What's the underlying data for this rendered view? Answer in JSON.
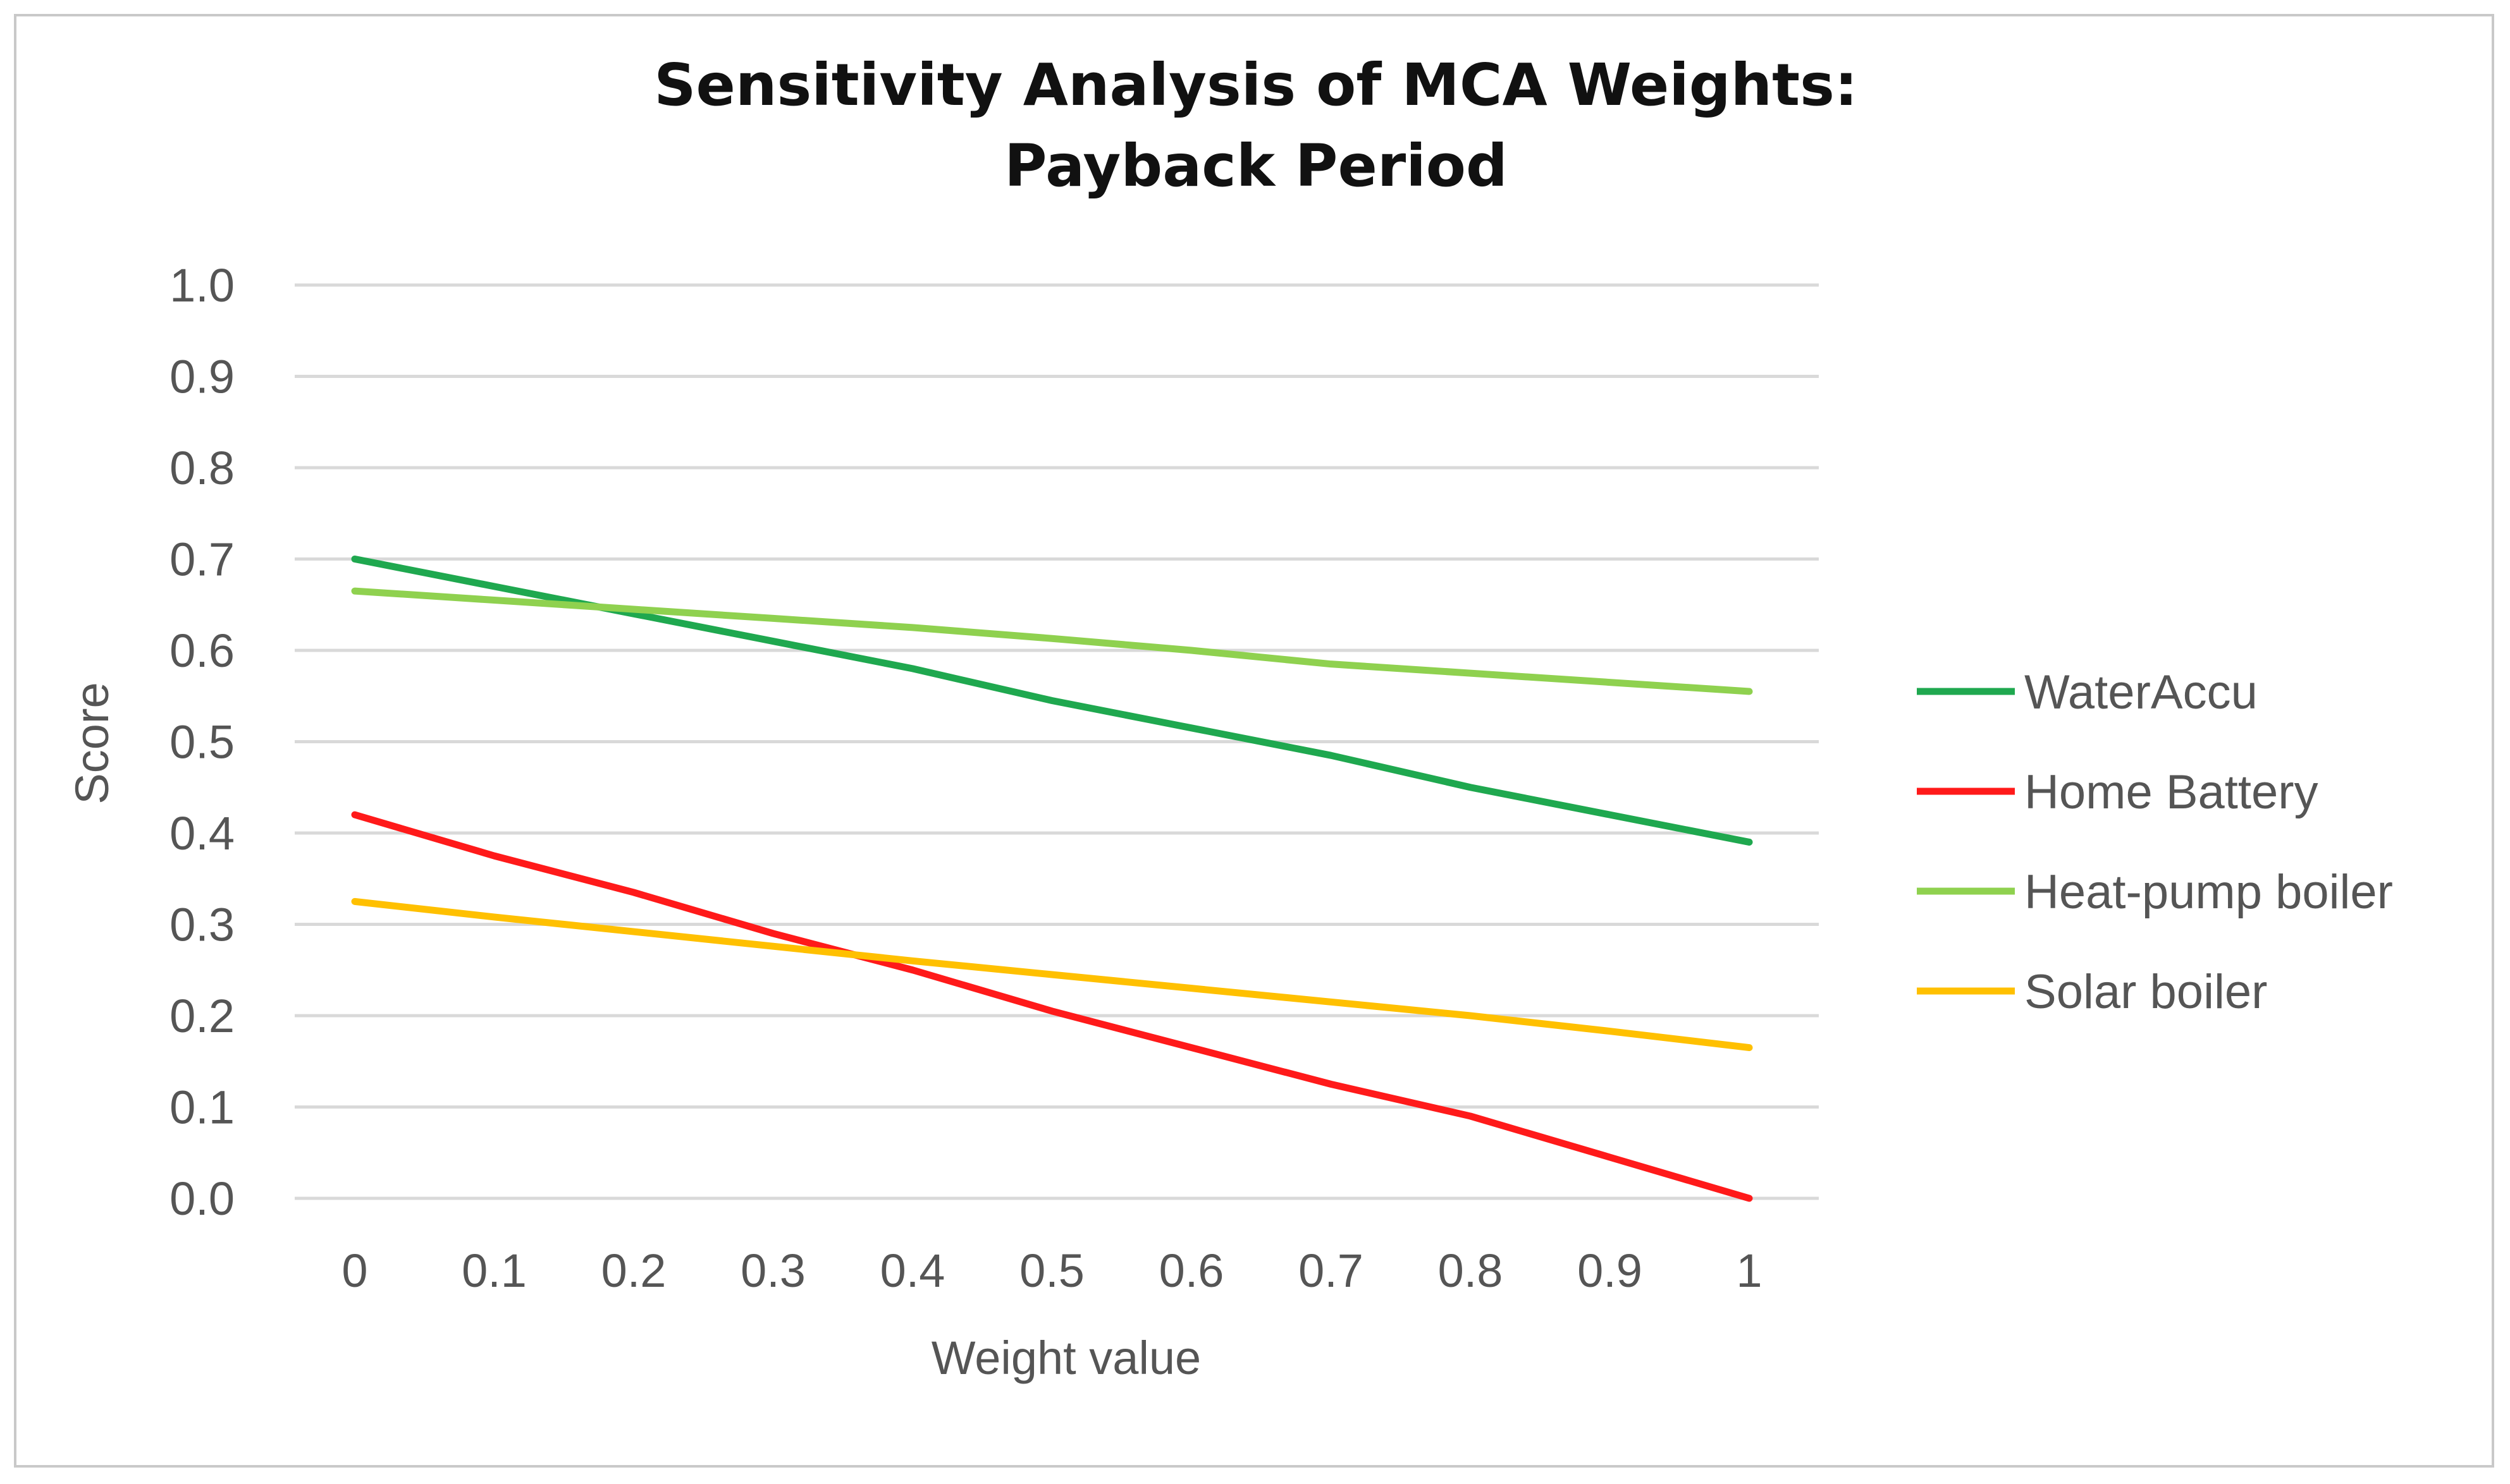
{
  "chart_data": {
    "type": "line",
    "title": [
      "Sensitivity Analysis of MCA Weights:",
      "Payback Period"
    ],
    "xlabel": "Weight value",
    "ylabel": "Score",
    "x": [
      0,
      0.1,
      0.2,
      0.3,
      0.4,
      0.5,
      0.6,
      0.7,
      0.8,
      0.9,
      1
    ],
    "x_tick_labels": [
      "0",
      "0.1",
      "0.2",
      "0.3",
      "0.4",
      "0.5",
      "0.6",
      "0.7",
      "0.8",
      "0.9",
      "1"
    ],
    "y_tick_labels": [
      "0.0",
      "0.1",
      "0.2",
      "0.3",
      "0.4",
      "0.5",
      "0.6",
      "0.7",
      "0.8",
      "0.9",
      "1.0"
    ],
    "ylim": [
      0,
      1
    ],
    "grid": true,
    "legend_position": "right",
    "series": [
      {
        "name": "WaterAccu",
        "color": "#1fa84f",
        "values": [
          0.7,
          0.67,
          0.64,
          0.61,
          0.58,
          0.545,
          0.515,
          0.485,
          0.45,
          0.42,
          0.39
        ]
      },
      {
        "name": "Home Battery",
        "color": "#ff1a1a",
        "values": [
          0.42,
          0.375,
          0.335,
          0.29,
          0.25,
          0.205,
          0.165,
          0.125,
          0.09,
          0.045,
          0.0
        ]
      },
      {
        "name": "Heat-pump boiler",
        "color": "#8fd14f",
        "values": [
          0.665,
          0.655,
          0.645,
          0.635,
          0.625,
          0.613,
          0.6,
          0.585,
          0.575,
          0.565,
          0.555
        ]
      },
      {
        "name": "Solar boiler",
        "color": "#ffc000",
        "values": [
          0.325,
          0.308,
          0.292,
          0.276,
          0.26,
          0.245,
          0.23,
          0.215,
          0.2,
          0.183,
          0.165
        ]
      }
    ]
  }
}
